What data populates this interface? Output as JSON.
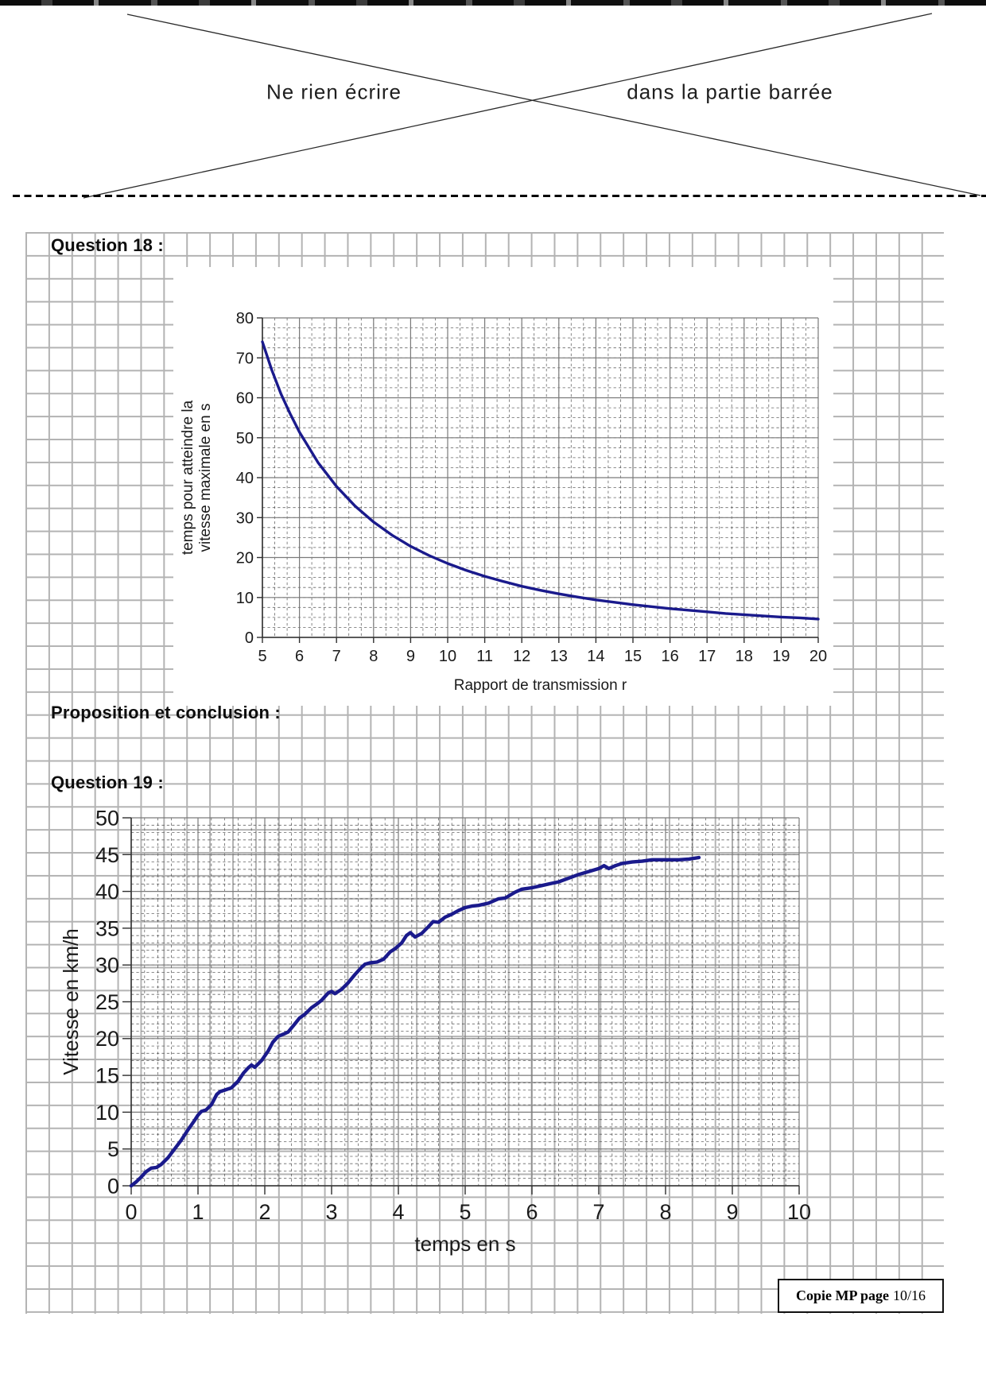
{
  "page": {
    "warning_left": "Ne rien écrire",
    "warning_right": "dans la partie barrée",
    "question18_label": "Question 18 :",
    "proposition_label": "Proposition et conclusion :",
    "question19_label": "Question 19 :",
    "footer_bold": "Copie MP page",
    "footer_page": "10/16"
  },
  "colors": {
    "curve": "#1a1a8c",
    "major_grid": "#7a7a7a",
    "minor_grid": "#3f3f3f",
    "axis": "#2f2f2f",
    "paper_grid": "#b3b3b3"
  },
  "chart_data": [
    {
      "type": "line",
      "title": "",
      "xlabel": "Rapport de transmission r",
      "ylabel_lines": [
        "temps pour atteindre la",
        "vitesse maximale en s"
      ],
      "xlim": [
        5,
        20
      ],
      "xstep": 1,
      "ylim": [
        0,
        80
      ],
      "ystep": 10,
      "minor": {
        "dx": 0.3333,
        "dy": 2.5
      },
      "grid": "major+minor-dashed",
      "legend": "none",
      "points": [
        [
          5,
          74
        ],
        [
          5.25,
          67
        ],
        [
          5.5,
          61
        ],
        [
          5.75,
          56
        ],
        [
          6,
          51.4
        ],
        [
          6.5,
          43.8
        ],
        [
          7,
          37.8
        ],
        [
          7.5,
          32.9
        ],
        [
          8,
          28.9
        ],
        [
          8.5,
          25.6
        ],
        [
          9,
          22.8
        ],
        [
          9.5,
          20.5
        ],
        [
          10,
          18.5
        ],
        [
          10.5,
          16.8
        ],
        [
          11,
          15.3
        ],
        [
          11.5,
          14
        ],
        [
          12,
          12.8
        ],
        [
          12.5,
          11.8
        ],
        [
          13,
          10.9
        ],
        [
          13.5,
          10.1
        ],
        [
          14,
          9.4
        ],
        [
          14.5,
          8.8
        ],
        [
          15,
          8.2
        ],
        [
          15.5,
          7.7
        ],
        [
          16,
          7.2
        ],
        [
          16.5,
          6.8
        ],
        [
          17,
          6.4
        ],
        [
          17.5,
          6
        ],
        [
          18,
          5.7
        ],
        [
          18.5,
          5.4
        ],
        [
          19,
          5.1
        ],
        [
          19.5,
          4.9
        ],
        [
          20,
          4.6
        ]
      ]
    },
    {
      "type": "line",
      "title": "",
      "xlabel": "temps en s",
      "ylabel_lines": [
        "Vitesse en km/h"
      ],
      "xlim": [
        0,
        10
      ],
      "xstep": 1,
      "ylim": [
        0,
        50
      ],
      "ystep": 5,
      "minor": {
        "dx": 0.2,
        "dy": 1
      },
      "grid": "major+minor-dashed",
      "legend": "none",
      "points": [
        [
          0,
          0
        ],
        [
          0.07,
          0.5
        ],
        [
          0.15,
          1.2
        ],
        [
          0.22,
          1.9
        ],
        [
          0.3,
          2.4
        ],
        [
          0.38,
          2.5
        ],
        [
          0.45,
          2.9
        ],
        [
          0.55,
          3.8
        ],
        [
          0.65,
          5.0
        ],
        [
          0.75,
          6.2
        ],
        [
          0.85,
          7.6
        ],
        [
          0.95,
          8.9
        ],
        [
          1.0,
          9.6
        ],
        [
          1.05,
          10.1
        ],
        [
          1.12,
          10.3
        ],
        [
          1.2,
          11.0
        ],
        [
          1.28,
          12.4
        ],
        [
          1.33,
          12.8
        ],
        [
          1.4,
          13.0
        ],
        [
          1.5,
          13.3
        ],
        [
          1.6,
          14.2
        ],
        [
          1.68,
          15.3
        ],
        [
          1.75,
          16.0
        ],
        [
          1.8,
          16.4
        ],
        [
          1.85,
          16.1
        ],
        [
          1.95,
          17.0
        ],
        [
          2.05,
          18.3
        ],
        [
          2.12,
          19.5
        ],
        [
          2.2,
          20.3
        ],
        [
          2.28,
          20.6
        ],
        [
          2.35,
          20.9
        ],
        [
          2.45,
          22.0
        ],
        [
          2.52,
          22.8
        ],
        [
          2.6,
          23.3
        ],
        [
          2.7,
          24.2
        ],
        [
          2.78,
          24.7
        ],
        [
          2.85,
          25.2
        ],
        [
          2.95,
          26.2
        ],
        [
          3.0,
          26.4
        ],
        [
          3.05,
          26.1
        ],
        [
          3.15,
          26.7
        ],
        [
          3.25,
          27.6
        ],
        [
          3.35,
          28.7
        ],
        [
          3.45,
          29.7
        ],
        [
          3.5,
          30.1
        ],
        [
          3.58,
          30.3
        ],
        [
          3.68,
          30.4
        ],
        [
          3.78,
          30.8
        ],
        [
          3.88,
          31.8
        ],
        [
          3.95,
          32.2
        ],
        [
          4.05,
          33.0
        ],
        [
          4.12,
          34.0
        ],
        [
          4.18,
          34.4
        ],
        [
          4.25,
          33.8
        ],
        [
          4.35,
          34.3
        ],
        [
          4.45,
          35.2
        ],
        [
          4.52,
          35.9
        ],
        [
          4.6,
          35.8
        ],
        [
          4.7,
          36.5
        ],
        [
          4.8,
          36.9
        ],
        [
          4.9,
          37.4
        ],
        [
          5.0,
          37.8
        ],
        [
          5.1,
          38.0
        ],
        [
          5.2,
          38.1
        ],
        [
          5.35,
          38.4
        ],
        [
          5.5,
          39.0
        ],
        [
          5.6,
          39.1
        ],
        [
          5.75,
          39.9
        ],
        [
          5.85,
          40.3
        ],
        [
          6.0,
          40.5
        ],
        [
          6.15,
          40.8
        ],
        [
          6.3,
          41.1
        ],
        [
          6.4,
          41.3
        ],
        [
          6.55,
          41.8
        ],
        [
          6.7,
          42.3
        ],
        [
          6.85,
          42.7
        ],
        [
          7.0,
          43.1
        ],
        [
          7.08,
          43.5
        ],
        [
          7.15,
          43.1
        ],
        [
          7.25,
          43.5
        ],
        [
          7.35,
          43.8
        ],
        [
          7.5,
          44.0
        ],
        [
          7.65,
          44.1
        ],
        [
          7.8,
          44.3
        ],
        [
          8.0,
          44.3
        ],
        [
          8.2,
          44.3
        ],
        [
          8.35,
          44.4
        ],
        [
          8.5,
          44.6
        ]
      ]
    }
  ]
}
